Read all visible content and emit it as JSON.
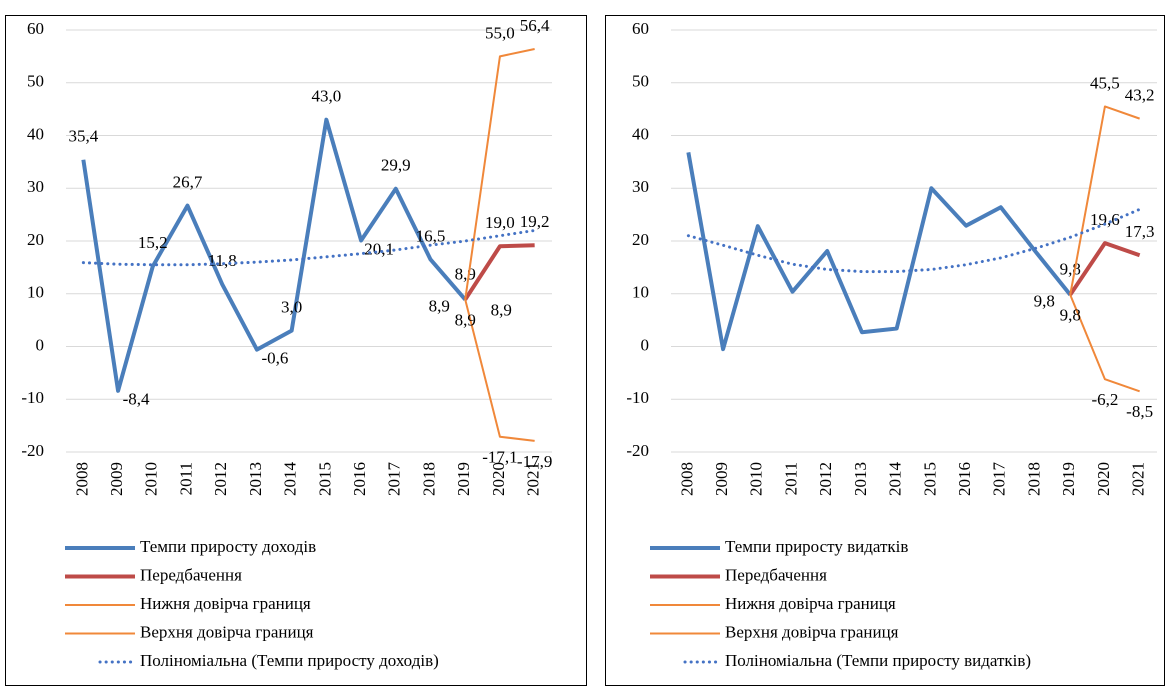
{
  "chart_data": [
    {
      "type": "line",
      "categories": [
        "2008",
        "2009",
        "2010",
        "2011",
        "2012",
        "2013",
        "2014",
        "2015",
        "2016",
        "2017",
        "2018",
        "2019",
        "2020",
        "2021"
      ],
      "ylim": [
        -20,
        60
      ],
      "yticks": [
        -20,
        -10,
        0,
        10,
        20,
        30,
        40,
        50,
        60
      ],
      "grid": true,
      "series": [
        {
          "name": "Темпи приросту доходів",
          "color": "#4a7ebb",
          "line_width": 4,
          "values": [
            35.4,
            -8.4,
            15.2,
            26.7,
            11.8,
            -0.6,
            3.0,
            43.0,
            20.1,
            29.9,
            16.5,
            8.9,
            null,
            null
          ],
          "value_labels": [
            "35,4",
            "-8,4",
            "15,2",
            "26,7",
            "11,8",
            "-0,6",
            "3,0",
            "43,0",
            "20,1",
            "29,9",
            "16,5",
            "8,9",
            null,
            null
          ]
        },
        {
          "name": "Передбачення",
          "color": "#be4b48",
          "line_width": 4,
          "values": [
            null,
            null,
            null,
            null,
            null,
            null,
            null,
            null,
            null,
            null,
            null,
            8.9,
            19.0,
            19.2
          ],
          "value_labels": [
            null,
            null,
            null,
            null,
            null,
            null,
            null,
            null,
            null,
            null,
            null,
            "8,9",
            "19,0",
            "19,2"
          ]
        },
        {
          "name": "Нижня довірча границя",
          "color": "#f0883a",
          "line_width": 2,
          "values": [
            null,
            null,
            null,
            null,
            null,
            null,
            null,
            null,
            null,
            null,
            null,
            8.9,
            -17.1,
            -17.9
          ],
          "value_labels": [
            null,
            null,
            null,
            null,
            null,
            null,
            null,
            null,
            null,
            null,
            null,
            "8,9",
            "-17,1",
            "-17,9"
          ]
        },
        {
          "name": "Верхня довірча границя",
          "color": "#f0883a",
          "line_width": 2,
          "values": [
            null,
            null,
            null,
            null,
            null,
            null,
            null,
            null,
            null,
            null,
            null,
            8.9,
            55.0,
            56.4
          ],
          "value_labels": [
            null,
            null,
            null,
            null,
            null,
            null,
            null,
            null,
            null,
            null,
            null,
            "8,9",
            "55,0",
            "56,4"
          ]
        },
        {
          "name": "Поліноміальна (Темпи приросту доходів)",
          "color": "#4472c4",
          "line_width": 3,
          "line_style": "dotted",
          "values": [
            15.9,
            15.6,
            15.5,
            15.5,
            15.7,
            16.0,
            16.4,
            17.0,
            17.6,
            18.3,
            19.2,
            20.0,
            21.0,
            22.0
          ]
        }
      ]
    },
    {
      "type": "line",
      "categories": [
        "2008",
        "2009",
        "2010",
        "2011",
        "2012",
        "2013",
        "2014",
        "2015",
        "2016",
        "2017",
        "2018",
        "2019",
        "2020",
        "2021"
      ],
      "ylim": [
        -20,
        60
      ],
      "yticks": [
        -20,
        -10,
        0,
        10,
        20,
        30,
        40,
        50,
        60
      ],
      "grid": true,
      "series": [
        {
          "name": "Темпи приросту видатків",
          "color": "#4a7ebb",
          "line_width": 4,
          "values": [
            36.8,
            -0.5,
            22.8,
            10.4,
            18.1,
            2.7,
            3.4,
            30.0,
            22.9,
            26.4,
            18.0,
            9.8,
            null,
            null
          ],
          "value_labels": [
            null,
            null,
            null,
            null,
            null,
            null,
            null,
            null,
            null,
            null,
            null,
            "9,8",
            null,
            null
          ]
        },
        {
          "name": "Передбачення",
          "color": "#be4b48",
          "line_width": 4,
          "values": [
            null,
            null,
            null,
            null,
            null,
            null,
            null,
            null,
            null,
            null,
            null,
            9.8,
            19.6,
            17.3
          ],
          "value_labels": [
            null,
            null,
            null,
            null,
            null,
            null,
            null,
            null,
            null,
            null,
            null,
            "9,8",
            "19,6",
            "17,3"
          ]
        },
        {
          "name": "Нижня довірча границя",
          "color": "#f0883a",
          "line_width": 2,
          "values": [
            null,
            null,
            null,
            null,
            null,
            null,
            null,
            null,
            null,
            null,
            null,
            9.8,
            -6.2,
            -8.5
          ],
          "value_labels": [
            null,
            null,
            null,
            null,
            null,
            null,
            null,
            null,
            null,
            null,
            null,
            "9,8",
            "-6,2",
            "-8,5"
          ]
        },
        {
          "name": "Верхня довірча границя",
          "color": "#f0883a",
          "line_width": 2,
          "values": [
            null,
            null,
            null,
            null,
            null,
            null,
            null,
            null,
            null,
            null,
            null,
            9.8,
            45.5,
            43.2
          ],
          "value_labels": [
            null,
            null,
            null,
            null,
            null,
            null,
            null,
            null,
            null,
            null,
            null,
            null,
            "45,5",
            "43,2"
          ]
        },
        {
          "name": "Поліноміальна (Темпи приросту видатків)",
          "color": "#4472c4",
          "line_width": 3,
          "line_style": "dotted",
          "values": [
            21.0,
            19.2,
            17.3,
            15.6,
            14.6,
            14.2,
            14.2,
            14.6,
            15.5,
            16.8,
            18.6,
            20.7,
            23.2,
            26.0
          ]
        }
      ]
    }
  ]
}
